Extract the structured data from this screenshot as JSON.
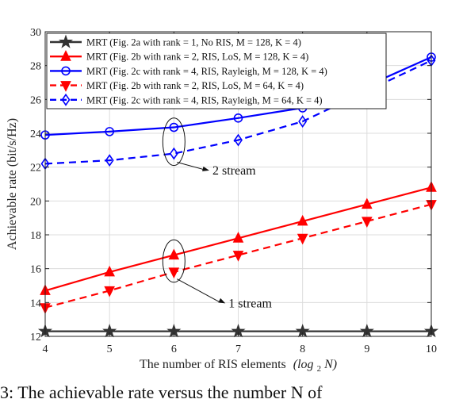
{
  "chart_data": {
    "type": "line",
    "title": "",
    "xlabel_text": "The number of RIS elements",
    "xlabel_math": "(log",
    "xlabel_sub": "2",
    "xlabel_math2": "N)",
    "ylabel": "Achievable rate (bit/s/Hz)",
    "x": [
      4,
      5,
      6,
      7,
      8,
      9,
      10
    ],
    "xlim": [
      4,
      10
    ],
    "ylim": [
      12,
      30
    ],
    "xticks": [
      "4",
      "5",
      "6",
      "7",
      "8",
      "9",
      "10"
    ],
    "yticks": [
      "12",
      "14",
      "16",
      "18",
      "20",
      "22",
      "24",
      "26",
      "28",
      "30"
    ],
    "grid": true,
    "legend_position": "top-left",
    "series": [
      {
        "name": "MRT (Fig. 2a with rank = 1, No RIS, M = 128, K = 4)",
        "color": "#333333",
        "dash": "solid",
        "marker": "star",
        "values": [
          12.3,
          12.3,
          12.3,
          12.3,
          12.3,
          12.3,
          12.3
        ]
      },
      {
        "name": "MRT (Fig. 2b with rank = 2, RIS, LoS, M = 128, K = 4)",
        "color": "#ff0000",
        "dash": "solid",
        "marker": "triangle-up",
        "values": [
          14.7,
          15.8,
          16.8,
          17.8,
          18.8,
          19.8,
          20.8
        ]
      },
      {
        "name": "MRT (Fig. 2c with rank = 4, RIS, Rayleigh, M = 128, K = 4)",
        "color": "#0000ff",
        "dash": "solid",
        "marker": "circle",
        "values": [
          23.9,
          24.1,
          24.35,
          24.9,
          25.5,
          26.8,
          28.5
        ]
      },
      {
        "name": "MRT (Fig. 2b with rank = 2, RIS, LoS, M = 64, K = 4)",
        "color": "#ff0000",
        "dash": "dashed",
        "marker": "triangle-down",
        "values": [
          13.7,
          14.7,
          15.8,
          16.8,
          17.8,
          18.8,
          19.8
        ]
      },
      {
        "name": "MRT (Fig. 2c with rank = 4, RIS, Rayleigh, M = 64, K = 4)",
        "color": "#0000ff",
        "dash": "dashed",
        "marker": "diamond",
        "values": [
          22.2,
          22.4,
          22.8,
          23.6,
          24.7,
          26.5,
          28.3
        ]
      }
    ],
    "annotations": [
      {
        "text": "2 stream",
        "x": 6,
        "y_range": [
          22.1,
          24.9
        ],
        "target_x": 6.55,
        "target_y": 21.8
      },
      {
        "text": "1 stream",
        "x": 6,
        "y_range": [
          15.2,
          17.7
        ],
        "target_x": 6.8,
        "target_y": 13.95
      }
    ]
  },
  "caption": "3: The achievable rate versus the number N of"
}
